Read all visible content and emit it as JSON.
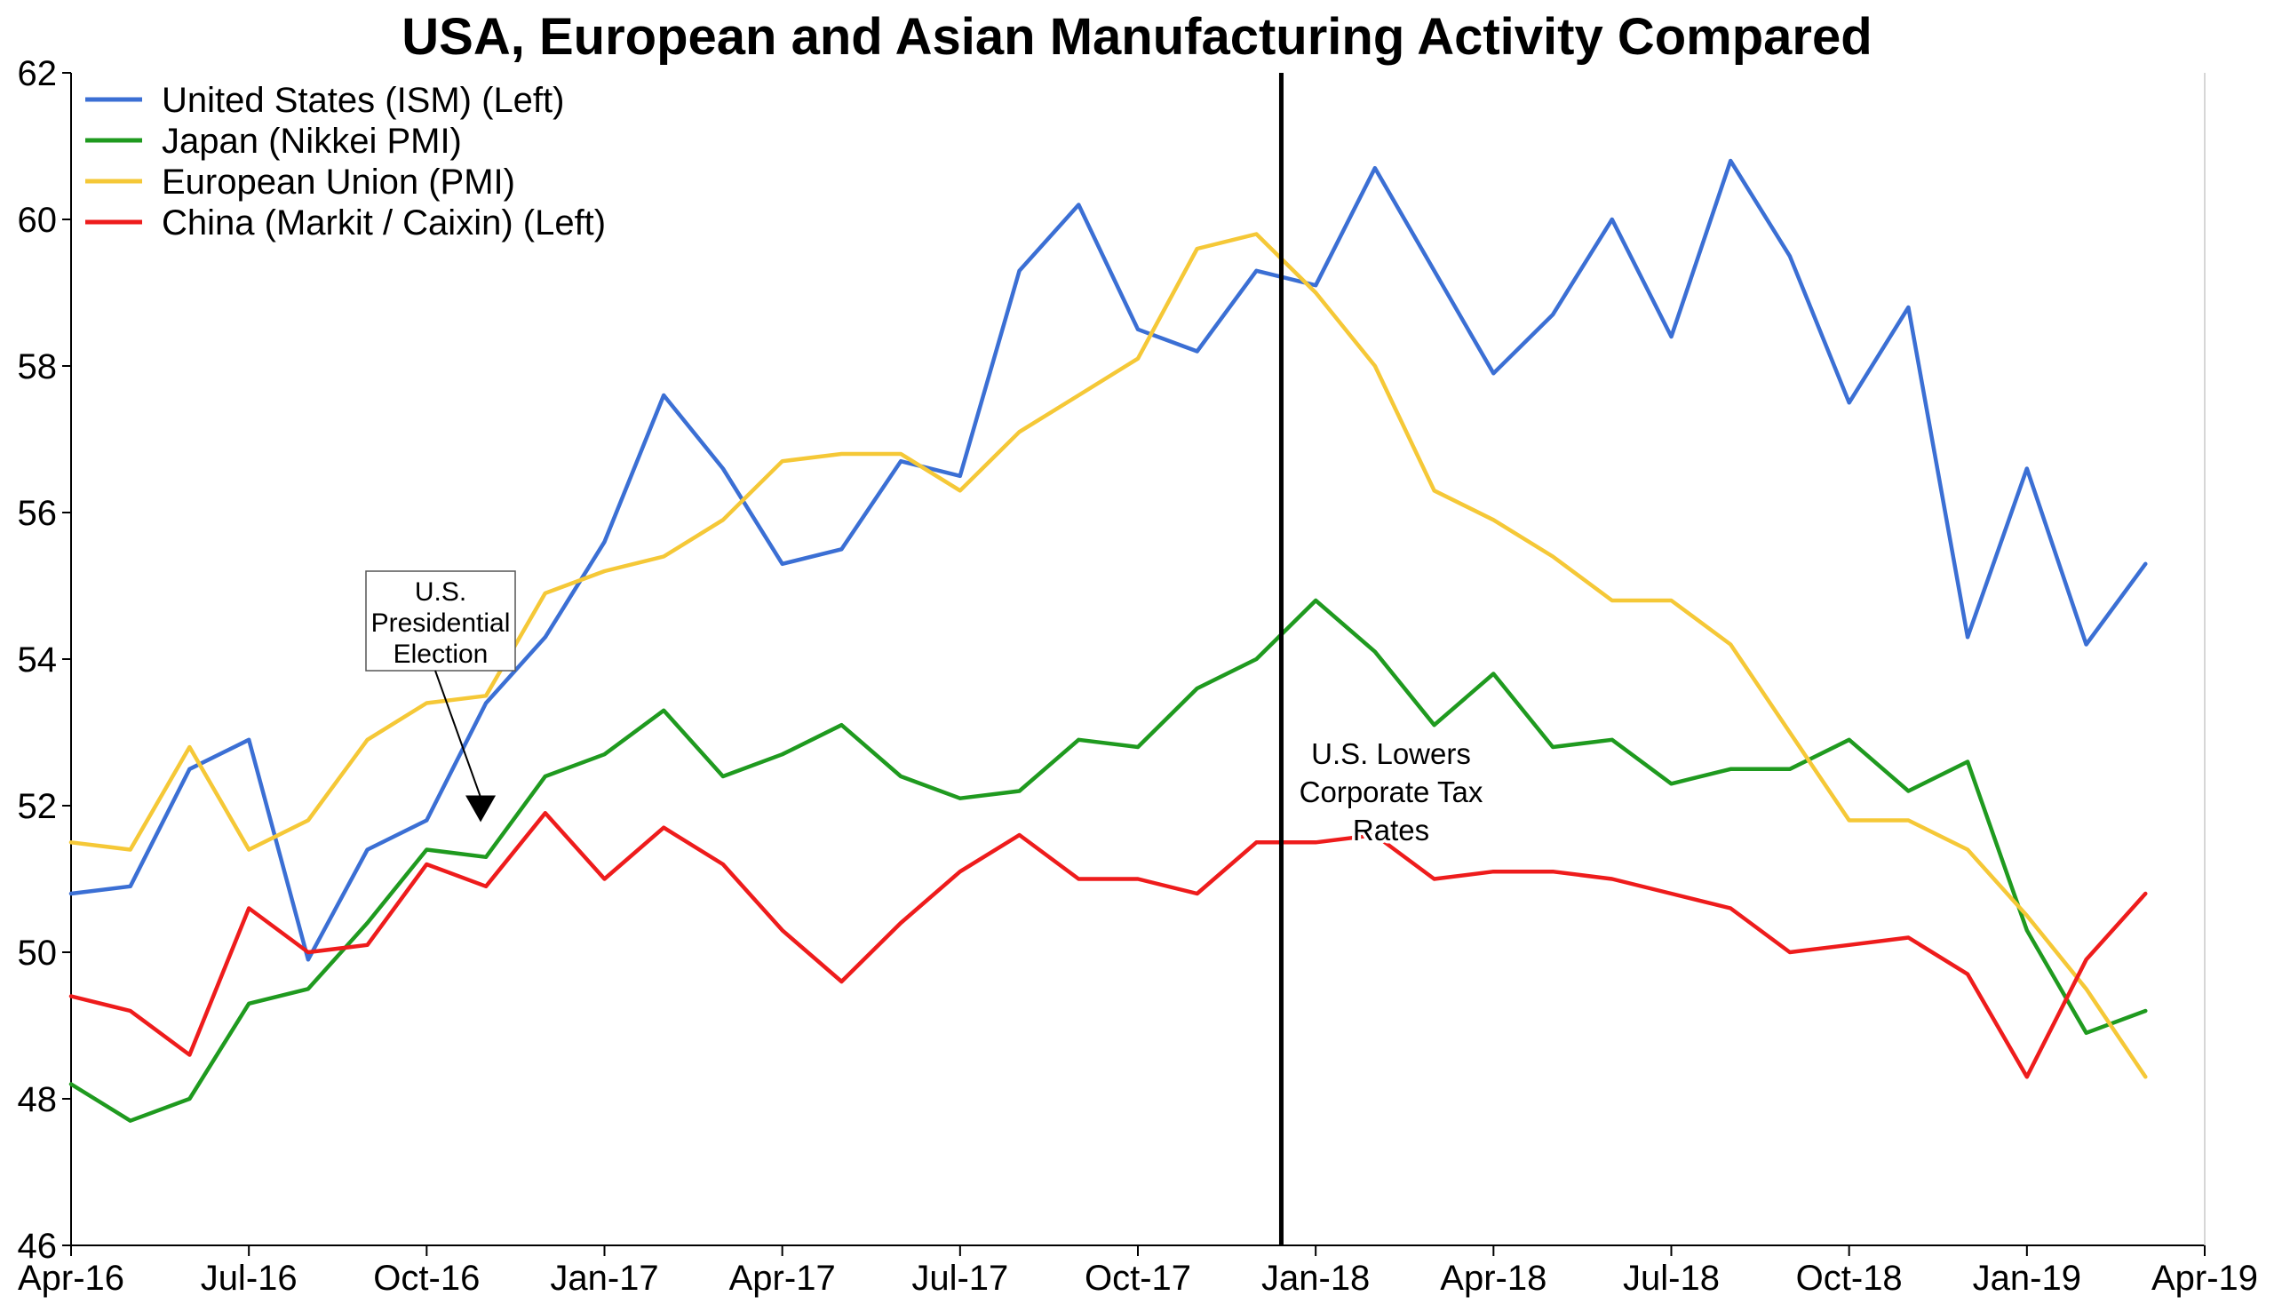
{
  "chart_data": {
    "type": "line",
    "title": "USA, European and Asian Manufacturing Activity Compared",
    "xlabel": "",
    "ylabel": "",
    "ylim": [
      46,
      62
    ],
    "yticks": [
      "46",
      "48",
      "50",
      "52",
      "54",
      "56",
      "58",
      "60",
      "62"
    ],
    "xlim": [
      "2016-04",
      "2019-04"
    ],
    "xticks": [
      "Apr-16",
      "Jul-16",
      "Oct-16",
      "Jan-17",
      "Apr-17",
      "Jul-17",
      "Oct-17",
      "Jan-18",
      "Apr-18",
      "Jul-18",
      "Oct-18",
      "Jan-19",
      "Apr-19"
    ],
    "grid": false,
    "legend_position": "top-left",
    "x": [
      "2016-04",
      "2016-05",
      "2016-06",
      "2016-07",
      "2016-08",
      "2016-09",
      "2016-10",
      "2016-11",
      "2016-12",
      "2017-01",
      "2017-02",
      "2017-03",
      "2017-04",
      "2017-05",
      "2017-06",
      "2017-07",
      "2017-08",
      "2017-09",
      "2017-10",
      "2017-11",
      "2017-12",
      "2018-01",
      "2018-02",
      "2018-03",
      "2018-04",
      "2018-05",
      "2018-06",
      "2018-07",
      "2018-08",
      "2018-09",
      "2018-10",
      "2018-11",
      "2018-12",
      "2019-01",
      "2019-02",
      "2019-03"
    ],
    "series": [
      {
        "name": "United States (ISM) (Left)",
        "color": "#3b6fd4",
        "values": [
          50.8,
          50.9,
          52.5,
          52.9,
          49.9,
          51.4,
          51.8,
          53.4,
          54.3,
          55.6,
          57.6,
          56.6,
          55.3,
          55.5,
          56.7,
          56.5,
          59.3,
          60.2,
          58.5,
          58.2,
          59.3,
          59.1,
          60.7,
          59.3,
          57.9,
          58.7,
          60.0,
          58.4,
          60.8,
          59.5,
          57.5,
          58.8,
          54.3,
          56.6,
          54.2,
          55.3
        ]
      },
      {
        "name": "Japan (Nikkei PMI)",
        "color": "#1f9a1f",
        "values": [
          48.2,
          47.7,
          48.0,
          49.3,
          49.5,
          50.4,
          51.4,
          51.3,
          52.4,
          52.7,
          53.3,
          52.4,
          52.7,
          53.1,
          52.4,
          52.1,
          52.2,
          52.9,
          52.8,
          53.6,
          54.0,
          54.8,
          54.1,
          53.1,
          53.8,
          52.8,
          52.9,
          52.3,
          52.5,
          52.5,
          52.9,
          52.2,
          52.6,
          50.3,
          48.9,
          49.2
        ]
      },
      {
        "name": "European Union (PMI)",
        "color": "#f5c837",
        "values": [
          51.5,
          51.4,
          52.8,
          51.4,
          51.8,
          52.9,
          53.4,
          53.5,
          54.9,
          55.2,
          55.4,
          55.9,
          56.7,
          56.8,
          56.8,
          56.3,
          57.1,
          57.6,
          58.1,
          59.6,
          59.8,
          59.0,
          58.0,
          56.3,
          55.9,
          55.4,
          54.8,
          54.8,
          54.2,
          53.0,
          51.8,
          51.8,
          51.4,
          50.5,
          49.5,
          48.3
        ]
      },
      {
        "name": "China (Markit / Caixin) (Left)",
        "color": "#ee1c1c",
        "values": [
          49.4,
          49.2,
          48.6,
          50.6,
          50.0,
          50.1,
          51.2,
          50.9,
          51.9,
          51.0,
          51.7,
          51.2,
          50.3,
          49.6,
          50.4,
          51.1,
          51.6,
          51.0,
          51.0,
          50.8,
          51.5,
          51.5,
          51.6,
          51.0,
          51.1,
          51.1,
          51.0,
          50.8,
          50.6,
          50.0,
          50.1,
          50.2,
          49.7,
          48.3,
          49.9,
          50.8
        ]
      }
    ],
    "annotations": [
      {
        "id": "election",
        "text": [
          "U.S.",
          "Presidential",
          "Election"
        ],
        "x": "2016-11",
        "y": 51.8
      },
      {
        "id": "tax",
        "text": [
          "U.S. Lowers",
          "Corporate Tax",
          "Rates"
        ],
        "x": "2017-12"
      }
    ]
  }
}
